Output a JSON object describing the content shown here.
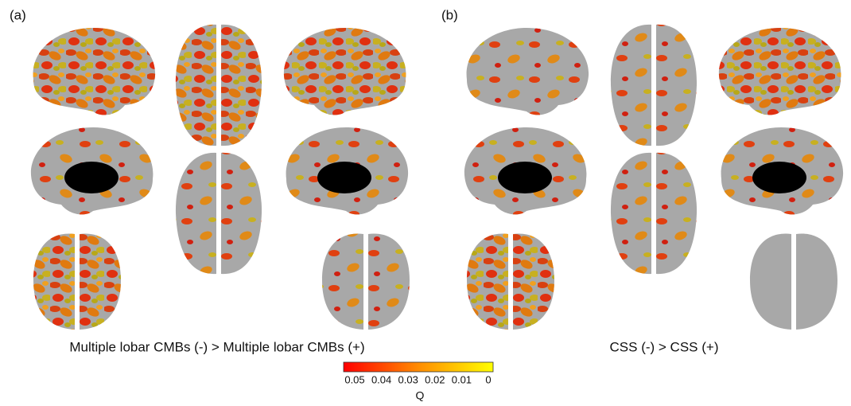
{
  "panels": [
    {
      "label": "(a)",
      "caption": "Multiple lobar CMBs (-) > Multiple lobar CMBs (+)"
    },
    {
      "label": "(b)",
      "caption": "CSS (-) > CSS (+)"
    }
  ],
  "colorbar": {
    "label": "Q",
    "range": [
      0.05,
      0
    ],
    "ticks": [
      0.05,
      0.04,
      0.03,
      0.02,
      0.01,
      0
    ],
    "colors": [
      "#ff0000",
      "#ff8c00",
      "#ffff00"
    ]
  }
}
